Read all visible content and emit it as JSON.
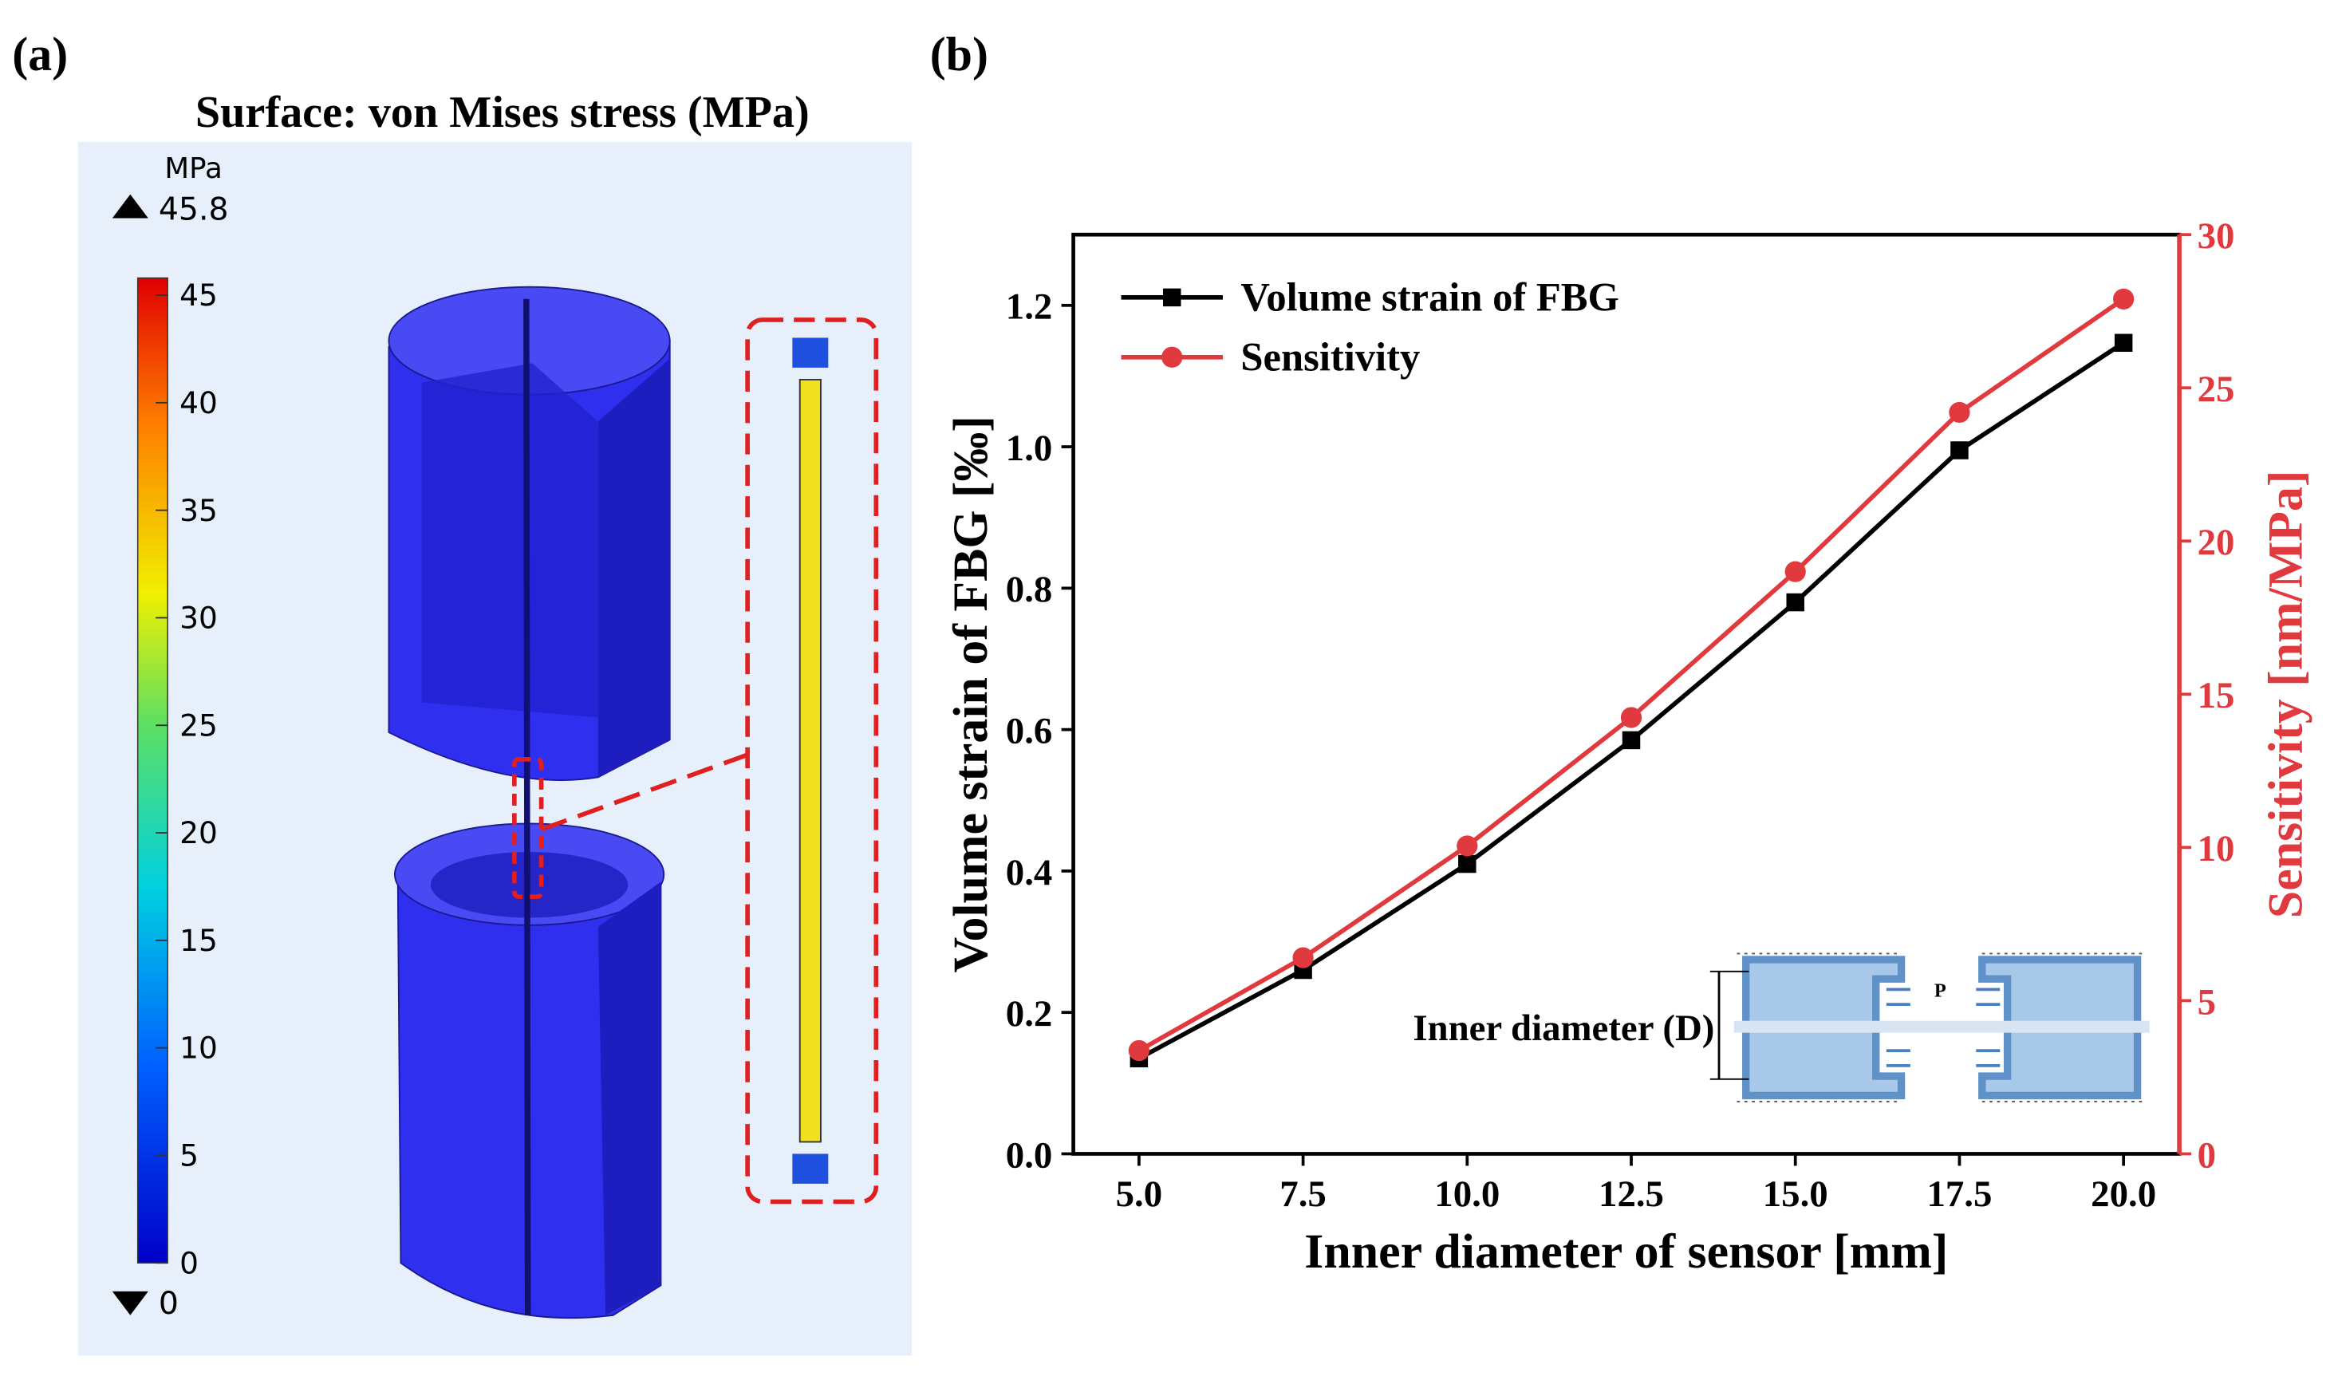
{
  "panel_a": {
    "label": "(a)",
    "title": "Surface: von Mises stress (MPa)",
    "colorbar": {
      "unit": "MPa",
      "max": 45.8,
      "min": 0,
      "lim": [
        0,
        45.8
      ],
      "ticks": [
        0,
        5,
        10,
        15,
        20,
        25,
        30,
        35,
        40,
        45
      ]
    }
  },
  "chart_data": {
    "type": "line",
    "panel_label": "(b)",
    "xlabel": "Inner diameter of sensor [mm]",
    "ylabel": "Volume strain of FBG [‰]",
    "y2label": "Sensitivity [nm/MPa]",
    "x": [
      5,
      7.5,
      10,
      12.5,
      15,
      17.5,
      20
    ],
    "series": [
      {
        "name": "Volume strain of FBG",
        "color": "#000000",
        "marker": "square",
        "values": [
          0.135,
          0.26,
          0.41,
          0.585,
          0.78,
          0.995,
          1.147
        ]
      },
      {
        "name": "Sensitivity",
        "color": "#e0393e",
        "marker": "circle",
        "axis": "y2",
        "values": [
          3.37,
          6.4,
          10.05,
          14.24,
          19.0,
          24.2,
          27.9
        ]
      }
    ],
    "xlim": [
      4,
      20.85
    ],
    "ylim": [
      0,
      1.3
    ],
    "y2lim": [
      0,
      30
    ],
    "xticks": [
      {
        "value": 5,
        "label": "5.0"
      },
      {
        "value": 7.5,
        "label": "7.5"
      },
      {
        "value": 10,
        "label": "10.0"
      },
      {
        "value": 12.5,
        "label": "12.5"
      },
      {
        "value": 15,
        "label": "15.0"
      },
      {
        "value": 17.5,
        "label": "17.5"
      },
      {
        "value": 20,
        "label": "20.0"
      }
    ],
    "yticks": [
      {
        "value": 0,
        "label": "0.0"
      },
      {
        "value": 0.2,
        "label": "0.2"
      },
      {
        "value": 0.4,
        "label": "0.4"
      },
      {
        "value": 0.6,
        "label": "0.6"
      },
      {
        "value": 0.8,
        "label": "0.8"
      },
      {
        "value": 1.0,
        "label": "1.0"
      },
      {
        "value": 1.2,
        "label": "1.2"
      }
    ],
    "y2ticks": [
      0,
      5,
      10,
      15,
      20,
      25,
      30
    ],
    "legend": "upper left",
    "annotations": [
      "Inner diameter (D)",
      "P"
    ]
  }
}
